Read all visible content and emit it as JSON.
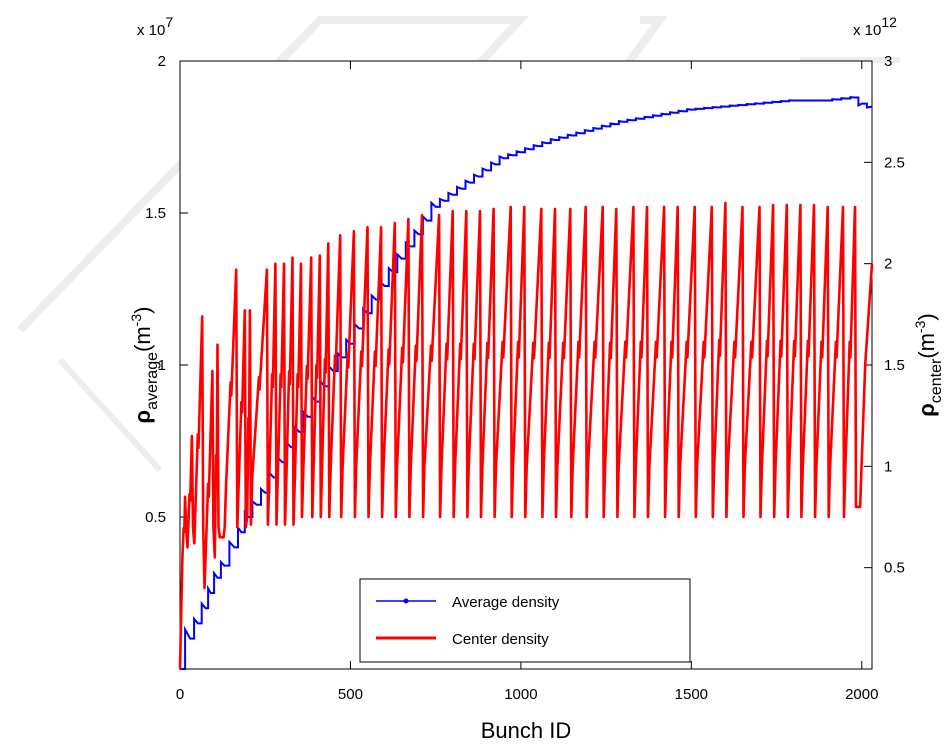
{
  "chart_data": {
    "type": "line",
    "xlabel": "Bunch ID",
    "xlim": [
      0,
      2030
    ],
    "xticks": [
      "0",
      "500",
      "1000",
      "1500",
      "2000"
    ],
    "xtick_values": [
      0,
      500,
      1000,
      1500,
      2000
    ],
    "y_left": {
      "label_symbol": "ρ",
      "label_subscript": "average",
      "label_unit": "(m",
      "label_unit_exp": "-3",
      "label_unit_close": ")",
      "multiplier_base": "x 10",
      "multiplier_exp": "7",
      "lim": [
        0,
        2
      ],
      "ticks": [
        "0.5",
        "1",
        "1.5",
        "2"
      ],
      "tick_values": [
        0.5,
        1,
        1.5,
        2
      ]
    },
    "y_right": {
      "label_symbol": "ρ",
      "label_subscript": "center",
      "label_unit": "(m",
      "label_unit_exp": "-3",
      "label_unit_close": ")",
      "multiplier_base": "x 10",
      "multiplier_exp": "12",
      "lim": [
        0,
        3
      ],
      "ticks": [
        "0.5",
        "1",
        "1.5",
        "2",
        "2.5",
        "3"
      ],
      "tick_values": [
        0.5,
        1,
        1.5,
        2,
        2.5,
        3
      ]
    },
    "legend": {
      "placement": "bottom-center"
    },
    "series": [
      {
        "name": "Average density",
        "axis": "left",
        "color": "#0000ff",
        "points": [
          [
            0,
            0
          ],
          [
            30,
            0.1
          ],
          [
            75,
            0.2
          ],
          [
            90,
            0.25
          ],
          [
            110,
            0.3
          ],
          [
            130,
            0.34
          ],
          [
            160,
            0.4
          ],
          [
            200,
            0.5
          ],
          [
            250,
            0.58
          ],
          [
            300,
            0.68
          ],
          [
            350,
            0.78
          ],
          [
            400,
            0.88
          ],
          [
            450,
            0.98
          ],
          [
            500,
            1.07
          ],
          [
            550,
            1.17
          ],
          [
            600,
            1.26
          ],
          [
            650,
            1.35
          ],
          [
            700,
            1.43
          ],
          [
            750,
            1.52
          ],
          [
            800,
            1.56
          ],
          [
            850,
            1.6
          ],
          [
            900,
            1.64
          ],
          [
            950,
            1.68
          ],
          [
            1000,
            1.7
          ],
          [
            1100,
            1.74
          ],
          [
            1200,
            1.77
          ],
          [
            1300,
            1.8
          ],
          [
            1400,
            1.82
          ],
          [
            1500,
            1.84
          ],
          [
            1600,
            1.85
          ],
          [
            1700,
            1.86
          ],
          [
            1800,
            1.87
          ],
          [
            1900,
            1.87
          ],
          [
            1980,
            1.88
          ],
          [
            2000,
            1.86
          ],
          [
            2030,
            1.85
          ]
        ]
      },
      {
        "name": "Center density",
        "axis": "right",
        "color": "#ff0000",
        "start": [
          0,
          0
        ],
        "trough_base": 0.55,
        "peaks": [
          [
            15,
            0.55,
            0.85
          ],
          [
            35,
            0.6,
            1.15
          ],
          [
            65,
            0.62,
            1.74
          ],
          [
            95,
            0.4,
            1.47
          ],
          [
            110,
            0.55,
            1.6
          ],
          [
            128,
            0.65,
            0.65
          ],
          [
            165,
            0.9,
            1.97
          ],
          [
            190,
            0.9,
            1.77
          ],
          [
            205,
            0.75,
            1.77
          ],
          [
            255,
            0.95,
            1.97
          ],
          [
            280,
            0.95,
            2.0
          ],
          [
            305,
            0.95,
            2.0
          ],
          [
            330,
            0.95,
            2.03
          ],
          [
            355,
            0.95,
            2.0
          ],
          [
            385,
            1.0,
            2.03
          ],
          [
            410,
            1.0,
            2.04
          ],
          [
            435,
            1.0,
            2.1
          ],
          [
            470,
            1.0,
            2.14
          ],
          [
            510,
            1.0,
            2.16
          ],
          [
            550,
            1.0,
            2.18
          ],
          [
            590,
            1.0,
            2.18
          ],
          [
            630,
            1.0,
            2.2
          ],
          [
            670,
            1.0,
            2.22
          ],
          [
            710,
            1.0,
            2.24
          ],
          [
            760,
            1.0,
            2.24
          ],
          [
            800,
            1.0,
            2.26
          ],
          [
            840,
            1.0,
            2.26
          ],
          [
            880,
            1.0,
            2.26
          ],
          [
            920,
            1.0,
            2.27
          ],
          [
            970,
            1.0,
            2.28
          ],
          [
            1010,
            1.0,
            2.28
          ],
          [
            1060,
            1.0,
            2.27
          ],
          [
            1100,
            1.0,
            2.27
          ],
          [
            1145,
            1.0,
            2.27
          ],
          [
            1190,
            1.0,
            2.28
          ],
          [
            1240,
            1.0,
            2.28
          ],
          [
            1280,
            1.0,
            2.27
          ],
          [
            1330,
            1.0,
            2.28
          ],
          [
            1370,
            1.0,
            2.28
          ],
          [
            1420,
            1.0,
            2.28
          ],
          [
            1460,
            1.0,
            2.28
          ],
          [
            1510,
            1.0,
            2.28
          ],
          [
            1560,
            1.0,
            2.28
          ],
          [
            1600,
            1.0,
            2.3
          ],
          [
            1650,
            1.0,
            2.28
          ],
          [
            1700,
            1.0,
            2.28
          ],
          [
            1740,
            1.0,
            2.29
          ],
          [
            1780,
            1.0,
            2.29
          ],
          [
            1820,
            1.0,
            2.29
          ],
          [
            1860,
            1.0,
            2.29
          ],
          [
            1900,
            1.0,
            2.28
          ],
          [
            1945,
            1.0,
            2.28
          ],
          [
            1980,
            1.0,
            2.28
          ]
        ],
        "end": [
          [
            1995,
            0.8
          ],
          [
            2010,
            1.5
          ],
          [
            2030,
            2.0
          ]
        ]
      }
    ]
  }
}
